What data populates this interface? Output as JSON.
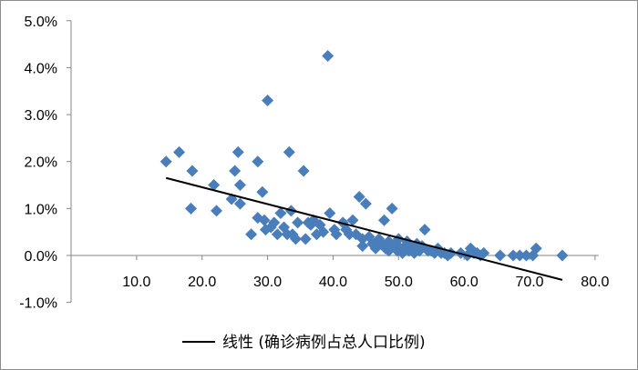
{
  "chart_data": {
    "type": "scatter",
    "title": "",
    "xlabel": "",
    "ylabel": "",
    "xlim": [
      0,
      80
    ],
    "ylim": [
      -0.01,
      0.05
    ],
    "x_ticks": [
      10,
      20,
      30,
      40,
      50,
      60,
      70,
      80
    ],
    "x_tick_labels": [
      "10.0",
      "20.0",
      "30.0",
      "40.0",
      "50.0",
      "60.0",
      "70.0",
      "80.0"
    ],
    "y_ticks": [
      -0.01,
      0,
      0.01,
      0.02,
      0.03,
      0.04,
      0.05
    ],
    "y_tick_labels": [
      "-1.0%",
      "0.0%",
      "1.0%",
      "2.0%",
      "3.0%",
      "4.0%",
      "5.0%"
    ],
    "grid": false,
    "legend_position": "bottom",
    "marker_color": "#4a7ebb",
    "trendline_color": "#000000",
    "series": [
      {
        "values": [
          [
            14.5,
            0.02
          ],
          [
            16.5,
            0.022
          ],
          [
            18.5,
            0.018
          ],
          [
            18.3,
            0.01
          ],
          [
            21.8,
            0.015
          ],
          [
            22.2,
            0.0095
          ],
          [
            24.5,
            0.012
          ],
          [
            25.0,
            0.018
          ],
          [
            25.5,
            0.022
          ],
          [
            25.8,
            0.015
          ],
          [
            25.8,
            0.011
          ],
          [
            27.5,
            0.0045
          ],
          [
            28.5,
            0.02
          ],
          [
            28.5,
            0.008
          ],
          [
            29.2,
            0.0135
          ],
          [
            29.5,
            0.0075
          ],
          [
            29.7,
            0.0055
          ],
          [
            30.0,
            0.033
          ],
          [
            30.5,
            0.006
          ],
          [
            31.0,
            0.007
          ],
          [
            31.5,
            0.0045
          ],
          [
            32.0,
            0.009
          ],
          [
            32.5,
            0.006
          ],
          [
            33.0,
            0.0045
          ],
          [
            33.3,
            0.022
          ],
          [
            33.6,
            0.0095
          ],
          [
            33.8,
            0.0045
          ],
          [
            34.3,
            0.0035
          ],
          [
            34.6,
            0.007
          ],
          [
            35.5,
            0.018
          ],
          [
            35.8,
            0.0035
          ],
          [
            36.2,
            0.007
          ],
          [
            36.6,
            0.0065
          ],
          [
            37.0,
            0.0075
          ],
          [
            37.5,
            0.0045
          ],
          [
            38.0,
            0.0065
          ],
          [
            38.5,
            0.005
          ],
          [
            39.2,
            0.0425
          ],
          [
            39.5,
            0.009
          ],
          [
            40.2,
            0.0055
          ],
          [
            40.5,
            0.0045
          ],
          [
            41.5,
            0.007
          ],
          [
            42.0,
            0.0055
          ],
          [
            42.5,
            0.0045
          ],
          [
            43.0,
            0.0075
          ],
          [
            43.5,
            0.0045
          ],
          [
            44.0,
            0.0125
          ],
          [
            44.5,
            0.0035
          ],
          [
            44.5,
            0.002
          ],
          [
            45.0,
            0.011
          ],
          [
            45.5,
            0.004
          ],
          [
            46.0,
            0.0025
          ],
          [
            46.5,
            0.0015
          ],
          [
            47.0,
            0.0035
          ],
          [
            47.5,
            0.0025
          ],
          [
            47.8,
            0.0075
          ],
          [
            48.0,
            0.0015
          ],
          [
            48.5,
            0.003
          ],
          [
            48.5,
            0.001
          ],
          [
            49.0,
            0.01
          ],
          [
            49.2,
            0.002
          ],
          [
            49.5,
            0.0025
          ],
          [
            49.8,
            0.001
          ],
          [
            50.0,
            0.0035
          ],
          [
            50.3,
            0.0015
          ],
          [
            50.6,
            0.0005
          ],
          [
            51.0,
            0.002
          ],
          [
            51.3,
            0.003
          ],
          [
            51.6,
            0.001
          ],
          [
            52.0,
            0.0015
          ],
          [
            52.4,
            0.0005
          ],
          [
            52.8,
            0.0025
          ],
          [
            53.2,
            0.001
          ],
          [
            53.6,
            0.002
          ],
          [
            54.0,
            0.0055
          ],
          [
            54.5,
            0.001
          ],
          [
            55.0,
            0.001
          ],
          [
            55.5,
            0.0005
          ],
          [
            56.0,
            0.0015
          ],
          [
            56.5,
            0.0005
          ],
          [
            57.0,
            0.0005
          ],
          [
            57.5,
            0.0
          ],
          [
            58.0,
            0.0005
          ],
          [
            59.5,
            0.0005
          ],
          [
            60.5,
            0.0
          ],
          [
            61.0,
            0.0015
          ],
          [
            61.5,
            0.0005
          ],
          [
            62.0,
            0.0005
          ],
          [
            62.5,
            0.0
          ],
          [
            63.0,
            0.0005
          ],
          [
            65.5,
            0.0
          ],
          [
            67.5,
            0.0
          ],
          [
            68.5,
            0.0
          ],
          [
            69.5,
            0.0
          ],
          [
            70.5,
            0.0
          ],
          [
            71.0,
            0.0015
          ],
          [
            75.0,
            0.0
          ]
        ]
      }
    ],
    "trendline": {
      "label": "线性 (确诊病例占总人口比例)",
      "x": [
        14.5,
        75.0
      ],
      "y": [
        0.0165,
        -0.0052
      ]
    }
  }
}
